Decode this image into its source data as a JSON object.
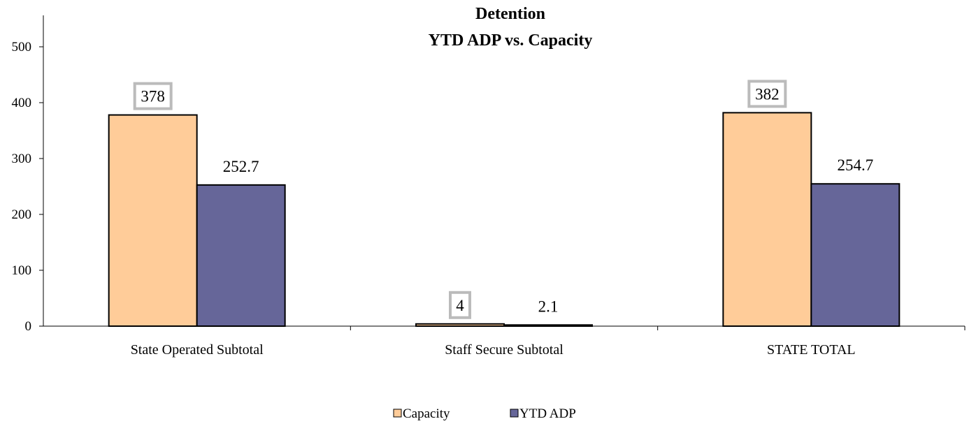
{
  "chart_data": {
    "type": "bar",
    "title": "Detention",
    "subtitle": "YTD ADP vs. Capacity",
    "categories": [
      "State Operated Subtotal",
      "Staff Secure Subtotal",
      "STATE TOTAL"
    ],
    "series": [
      {
        "name": "Capacity",
        "values": [
          378,
          4,
          382
        ],
        "color": "#FFCC99",
        "labels": [
          "378",
          "4",
          "382"
        ],
        "boxed_labels": true
      },
      {
        "name": "YTD ADP",
        "values": [
          252.7,
          2.1,
          254.7
        ],
        "color": "#666699",
        "labels": [
          "252.7",
          "2.1",
          "254.7"
        ],
        "boxed_labels": false
      }
    ],
    "yticks": [
      0,
      100,
      200,
      300,
      400,
      500
    ],
    "ylim": [
      0,
      550
    ],
    "xlabel": "",
    "ylabel": "",
    "grid": false,
    "legend": "bottom-center"
  }
}
